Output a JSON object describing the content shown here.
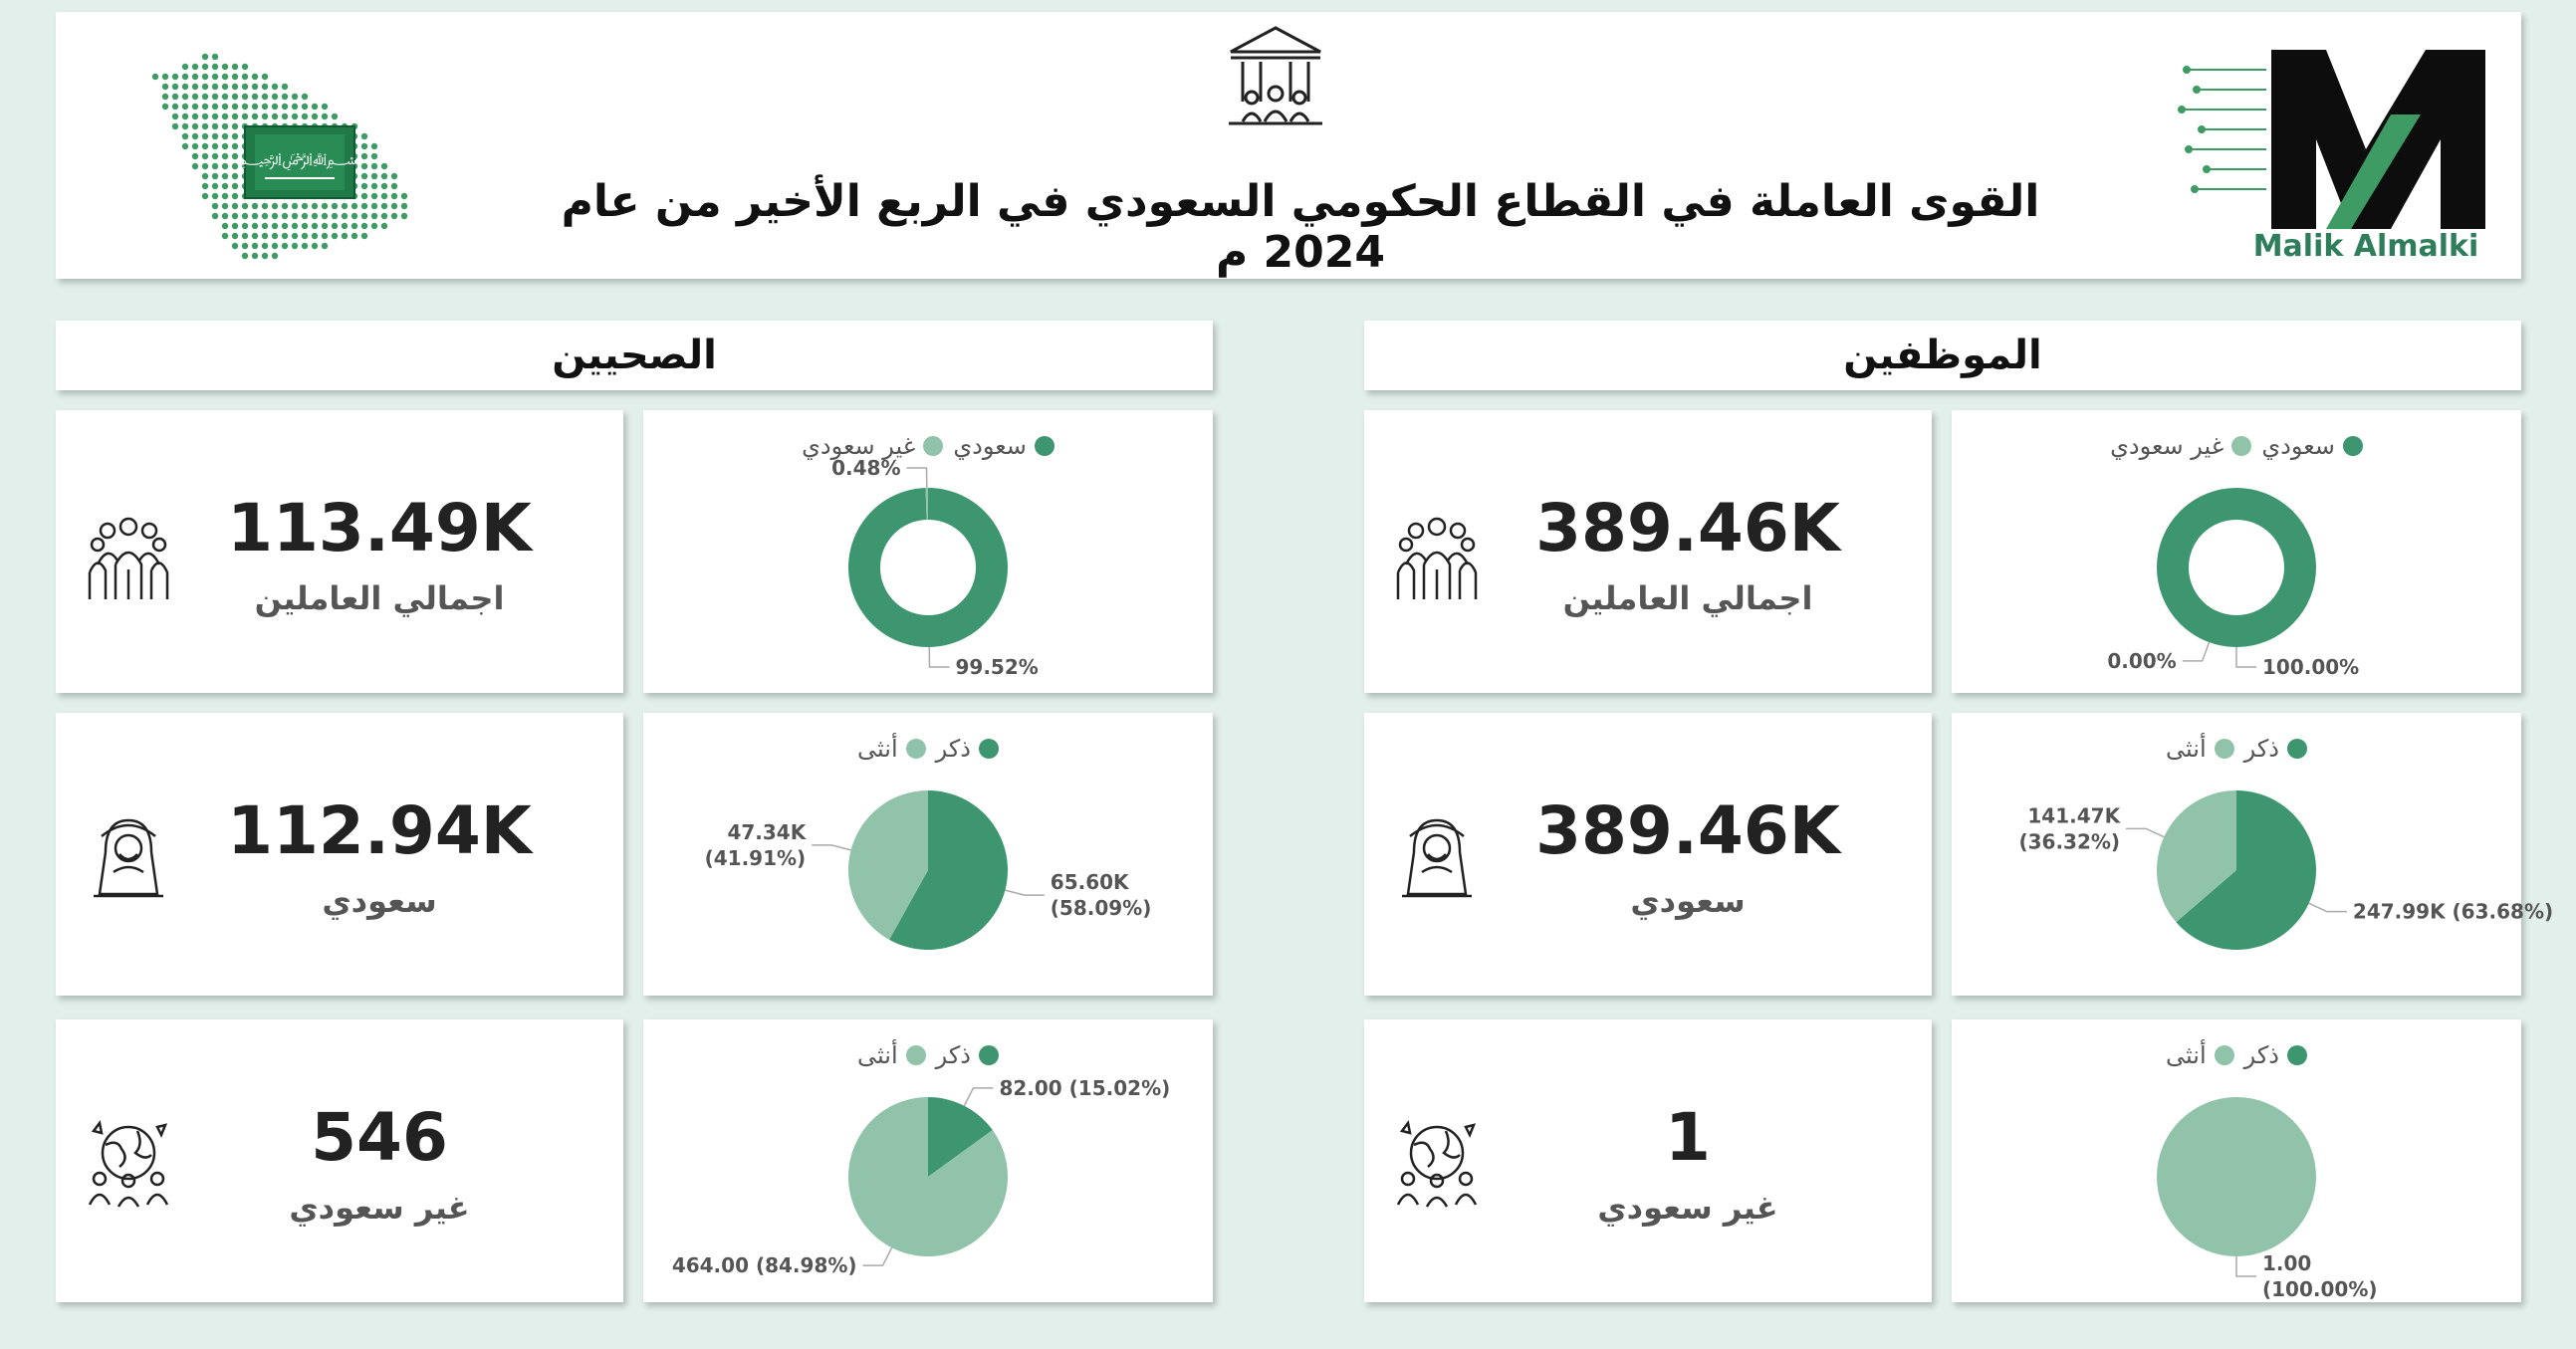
{
  "header": {
    "title": "القوى العاملة في القطاع الحكومي السعودي في الربع الأخير من عام 2024 م",
    "brand_name": "Malik Almalki"
  },
  "colors": {
    "dark": "#3e9670",
    "light": "#90c3a9"
  },
  "sections": {
    "employees": {
      "title": "الموظفين"
    },
    "health": {
      "title": "الصحيين"
    }
  },
  "kpis": {
    "emp_total": {
      "value": "389.46K",
      "label": "اجمالي العاملين"
    },
    "emp_saudi": {
      "value": "389.46K",
      "label": "سعودي"
    },
    "emp_nonsaudi": {
      "value": "1",
      "label": "غير سعودي"
    },
    "hlt_total": {
      "value": "113.49K",
      "label": "اجمالي العاملين"
    },
    "hlt_saudi": {
      "value": "112.94K",
      "label": "سعودي"
    },
    "hlt_nonsaudi": {
      "value": "546",
      "label": "غير سعودي"
    }
  },
  "chart_data": [
    {
      "id": "emp_nationality",
      "type": "pie",
      "donut": true,
      "legend": [
        "سعودي",
        "غير سعودي"
      ],
      "values": [
        100.0,
        0.0
      ],
      "labels": [
        "100.00%",
        "0.00%"
      ]
    },
    {
      "id": "emp_saudi_gender",
      "type": "pie",
      "donut": false,
      "legend": [
        "ذكر",
        "أنثى"
      ],
      "values": [
        247.99,
        141.47
      ],
      "labels": [
        "247.99K (63.68%)",
        "141.47K\n(36.32%)"
      ]
    },
    {
      "id": "emp_nonsaudi_gender",
      "type": "pie",
      "donut": false,
      "legend": [
        "ذكر",
        "أنثى"
      ],
      "values": [
        0,
        1
      ],
      "labels": [
        "",
        "1.00\n(100.00%)"
      ]
    },
    {
      "id": "hlt_nationality",
      "type": "pie",
      "donut": true,
      "legend": [
        "سعودي",
        "غير سعودي"
      ],
      "values": [
        99.52,
        0.48
      ],
      "labels": [
        "99.52%",
        "0.48%"
      ]
    },
    {
      "id": "hlt_saudi_gender",
      "type": "pie",
      "donut": false,
      "legend": [
        "ذكر",
        "أنثى"
      ],
      "values": [
        65.6,
        47.34
      ],
      "labels": [
        "65.60K\n(58.09%)",
        "47.34K\n(41.91%)"
      ]
    },
    {
      "id": "hlt_nonsaudi_gender",
      "type": "pie",
      "donut": false,
      "legend": [
        "ذكر",
        "أنثى"
      ],
      "values": [
        82,
        464
      ],
      "labels": [
        "82.00 (15.02%)",
        "464.00 (84.98%)"
      ]
    }
  ]
}
